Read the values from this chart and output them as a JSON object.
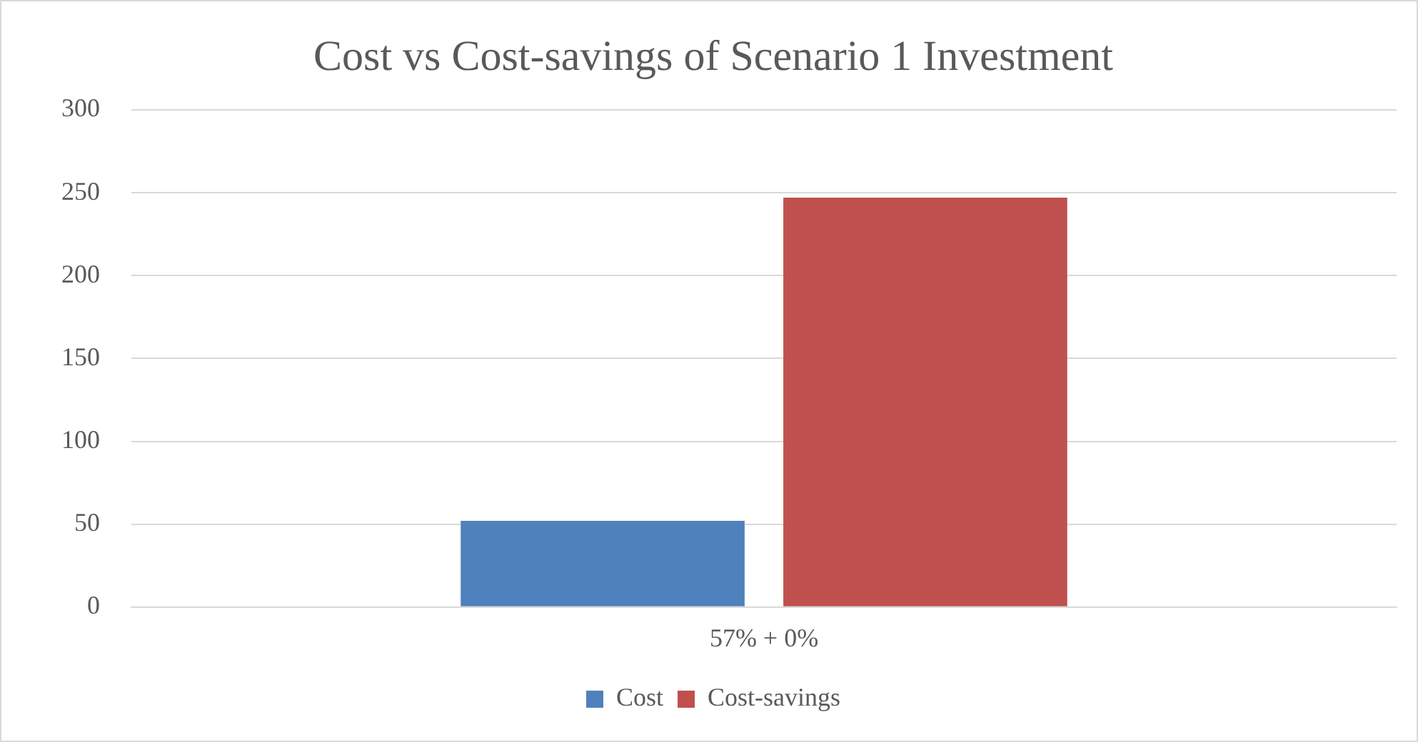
{
  "chart_data": {
    "type": "bar",
    "title": "Cost vs Cost-savings of Scenario 1 Investment",
    "categories": [
      "57% + 0%"
    ],
    "series": [
      {
        "name": "Cost",
        "color": "#4f81bd",
        "values": [
          52
        ]
      },
      {
        "name": "Cost-savings",
        "color": "#c0504d",
        "values": [
          247
        ]
      }
    ],
    "ylim": [
      0,
      300
    ],
    "yticks": [
      0,
      50,
      100,
      150,
      200,
      250,
      300
    ],
    "grid": "y",
    "legend": "bottom"
  }
}
